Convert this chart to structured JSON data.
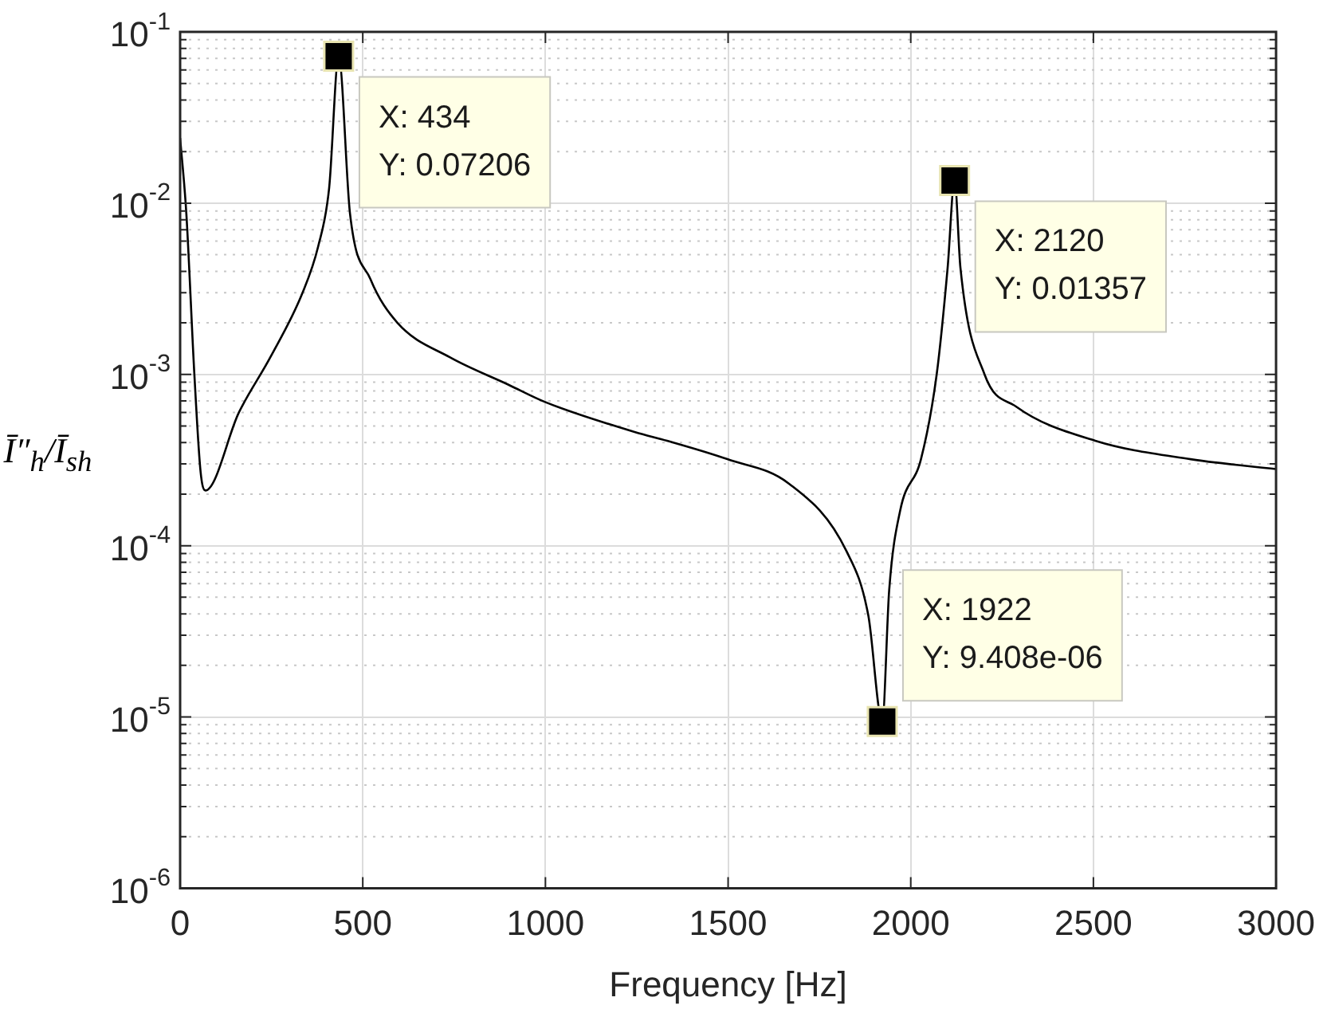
{
  "chart_data": {
    "type": "line",
    "xlabel": "Frequency [Hz]",
    "ylabel": "Ī″$_{h}$/Ī$_{sh}$",
    "log": "y",
    "grid": true,
    "marker": "none",
    "line_style": "solid",
    "legend": false,
    "x": [
      0,
      17,
      39,
      56,
      69,
      161,
      247,
      334,
      378,
      408,
      434,
      465,
      521,
      595,
      738,
      899,
      999,
      1246,
      1333,
      1498,
      1667,
      1824,
      1884,
      1922,
      1941,
      1971,
      2028,
      2071,
      2101,
      2120,
      2136,
      2202,
      2288,
      2505,
      2766,
      3000
    ],
    "series": [
      {
        "color": "#000000",
        "values": [
          0.024,
          0.0087,
          0.001,
          0.00027,
          0.00021,
          0.0006,
          0.00126,
          0.00296,
          0.0056,
          0.0123,
          0.07206,
          0.0087,
          0.0036,
          0.002,
          0.00126,
          0.00087,
          0.00069,
          0.00046,
          0.00041,
          0.00032,
          0.00023,
          9.3e-05,
          3.9e-05,
          9.408e-06,
          5.5e-05,
          0.00016,
          0.00032,
          0.001,
          0.0042,
          0.01357,
          0.0042,
          0.001,
          0.00065,
          0.00041,
          0.00032,
          0.00028
        ]
      }
    ],
    "xlim": [
      0,
      3000
    ],
    "xticks": [
      0,
      500,
      1000,
      1500,
      2000,
      2500,
      3000
    ],
    "ylim": [
      1e-06,
      0.1
    ],
    "yticks": [
      {
        "value": 1e-06,
        "label": "10$^{-6}$"
      },
      {
        "value": 1e-05,
        "label": "10$^{-5}$"
      },
      {
        "value": 0.0001,
        "label": "10$^{-4}$"
      },
      {
        "value": 0.001,
        "label": "10$^{-3}$"
      },
      {
        "value": 0.01,
        "label": "10$^{-2}$"
      },
      {
        "value": 0.1,
        "label": "10$^{-1}$"
      }
    ],
    "annotations": [
      {
        "text": "X: 434\nY: 0.07206",
        "x": 434,
        "y": 0.07206
      },
      {
        "text": "X: 2120\nY: 0.01357",
        "x": 2120,
        "y": 0.01357
      },
      {
        "text": "X: 1922\nY: 9.408e-06",
        "x": 1922,
        "y": 9.408e-06
      }
    ]
  }
}
